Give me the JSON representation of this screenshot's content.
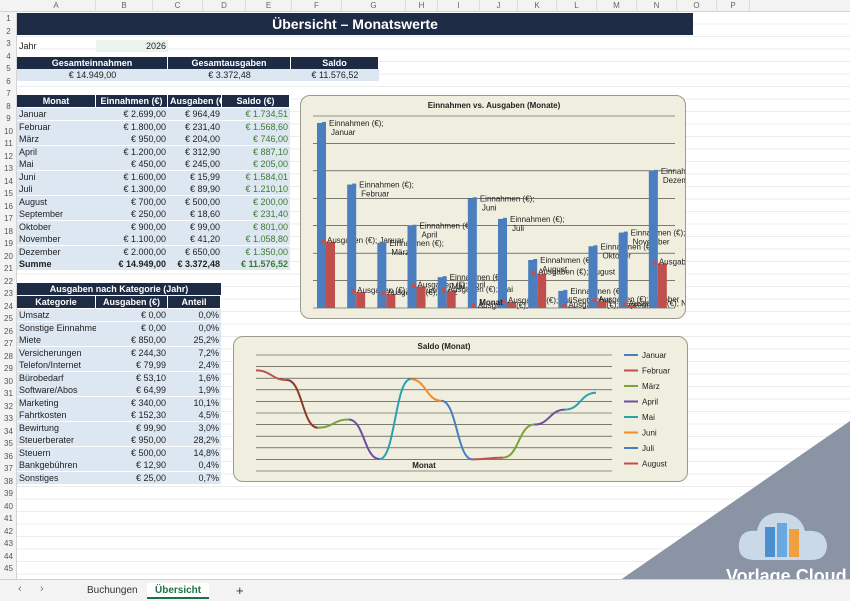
{
  "columns": [
    "A",
    "B",
    "C",
    "D",
    "E",
    "F",
    "G",
    "H",
    "I",
    "J",
    "K",
    "L",
    "M",
    "N",
    "O",
    "P"
  ],
  "rows": [
    "1",
    "2",
    "3",
    "4",
    "5",
    "6",
    "7",
    "8",
    "9",
    "10",
    "11",
    "12",
    "13",
    "14",
    "15",
    "16",
    "17",
    "18",
    "19",
    "20",
    "21",
    "22",
    "23",
    "24",
    "25",
    "26",
    "27",
    "28",
    "29",
    "30",
    "31",
    "32",
    "33",
    "34",
    "35",
    "36",
    "37",
    "38",
    "39",
    "40",
    "41",
    "42",
    "43",
    "44",
    "45"
  ],
  "title": "Übersicht – Monatswerte",
  "year": {
    "label": "Jahr",
    "value": "2026"
  },
  "totals": {
    "headers": [
      "Gesamteinnahmen",
      "Gesamtausgaben",
      "Saldo"
    ],
    "values": [
      "€ 14.949,00",
      "€ 3.372,48",
      "€ 11.576,52"
    ]
  },
  "months_table": {
    "headers": [
      "Monat",
      "Einnahmen (€)",
      "Ausgaben (€)",
      "Saldo (€)"
    ],
    "rows": [
      [
        "Januar",
        "€ 2.699,00",
        "€ 964,49",
        "€ 1.734,51"
      ],
      [
        "Februar",
        "€ 1.800,00",
        "€ 231,40",
        "€ 1.568,60"
      ],
      [
        "März",
        "€ 950,00",
        "€ 204,00",
        "€ 746,00"
      ],
      [
        "April",
        "€ 1.200,00",
        "€ 312,90",
        "€ 887,10"
      ],
      [
        "Mai",
        "€ 450,00",
        "€ 245,00",
        "€ 205,00"
      ],
      [
        "Juni",
        "€ 1.600,00",
        "€ 15,99",
        "€ 1.584,01"
      ],
      [
        "Juli",
        "€ 1.300,00",
        "€ 89,90",
        "€ 1.210,10"
      ],
      [
        "August",
        "€ 700,00",
        "€ 500,00",
        "€ 200,00"
      ],
      [
        "September",
        "€ 250,00",
        "€ 18,60",
        "€ 231,40"
      ],
      [
        "Oktober",
        "€ 900,00",
        "€ 99,00",
        "€ 801,00"
      ],
      [
        "November",
        "€ 1.100,00",
        "€ 41,20",
        "€ 1.058,80"
      ],
      [
        "Dezember",
        "€ 2.000,00",
        "€ 650,00",
        "€ 1.350,00"
      ]
    ],
    "sum": [
      "Summe",
      "€ 14.949,00",
      "€ 3.372,48",
      "€ 11.576,52"
    ]
  },
  "category_table": {
    "title": "Ausgaben nach Kategorie (Jahr)",
    "headers": [
      "Kategorie",
      "Ausgaben (€)",
      "Anteil"
    ],
    "rows": [
      [
        "Umsatz",
        "€ 0,00",
        "0,0%"
      ],
      [
        "Sonstige Einnahmen",
        "€ 0,00",
        "0,0%"
      ],
      [
        "Miete",
        "€ 850,00",
        "25,2%"
      ],
      [
        "Versicherungen",
        "€ 244,30",
        "7,2%"
      ],
      [
        "Telefon/Internet",
        "€ 79,99",
        "2,4%"
      ],
      [
        "Bürobedarf",
        "€ 53,10",
        "1,6%"
      ],
      [
        "Software/Abos",
        "€ 64,99",
        "1,9%"
      ],
      [
        "Marketing",
        "€ 340,00",
        "10,1%"
      ],
      [
        "Fahrtkosten",
        "€ 152,30",
        "4,5%"
      ],
      [
        "Bewirtung",
        "€ 99,90",
        "3,0%"
      ],
      [
        "Steuerberater",
        "€ 950,00",
        "28,2%"
      ],
      [
        "Steuern",
        "€ 500,00",
        "14,8%"
      ],
      [
        "Bankgebühren",
        "€ 12,90",
        "0,4%"
      ],
      [
        "Sonstiges",
        "€ 25,00",
        "0,7%"
      ]
    ]
  },
  "chart_data": [
    {
      "type": "bar",
      "title": "Einnahmen vs. Ausgaben (Monate)",
      "xlabel": "Monat",
      "categories": [
        "Januar",
        "Februar",
        "März",
        "April",
        "Mai",
        "Juni",
        "Juli",
        "August",
        "September",
        "Oktober",
        "November",
        "Dezember"
      ],
      "series": [
        {
          "name": "Einnahmen (€)",
          "color": "#4a7ebf",
          "values": [
            2699,
            1800,
            950,
            1200,
            450,
            1600,
            1300,
            700,
            250,
            900,
            1100,
            2000
          ]
        },
        {
          "name": "Ausgaben (€)",
          "color": "#c0504d",
          "values": [
            964.49,
            231.4,
            204.0,
            312.9,
            245.0,
            15.99,
            89.9,
            500.0,
            18.6,
            99.0,
            41.2,
            650.0
          ]
        }
      ],
      "ylim": [
        0,
        2800
      ],
      "grid": true
    },
    {
      "type": "line",
      "title": "Saldo (Monat)",
      "xlabel": "Monat",
      "categories": [
        "Januar",
        "Februar",
        "März",
        "April",
        "Mai",
        "Juni",
        "Juli",
        "August",
        "September",
        "Oktober",
        "November",
        "Dezember"
      ],
      "values": [
        1734.51,
        1568.6,
        746.0,
        887.1,
        205.0,
        1584.01,
        1210.1,
        200.0,
        231.4,
        801.0,
        1058.8,
        1350.0
      ],
      "segment_colors": [
        "#c0504d",
        "#8a3a2a",
        "#7aa33a",
        "#6f4fa0",
        "#2aa0b0",
        "#f08c2a",
        "#4a7ebf",
        "#c0504d",
        "#7aa33a",
        "#6f4fa0",
        "#2aa0b0",
        "#f08c2a"
      ],
      "legend": [
        "Januar",
        "Februar",
        "März",
        "April",
        "Mai",
        "Juni",
        "Juli",
        "August"
      ],
      "legend_colors": [
        "#4a7ebf",
        "#c0504d",
        "#7aa33a",
        "#6f4fa0",
        "#2aa0b0",
        "#f08c2a",
        "#4a7ebf",
        "#c0504d"
      ],
      "legend_position": "right",
      "ylim": [
        0,
        2000
      ],
      "grid": true
    }
  ],
  "tabs": [
    "Buchungen",
    "Übersicht"
  ],
  "tab_add": "+",
  "nav_prev": "‹",
  "nav_next": "›",
  "watermark": "Vorlage Cloud"
}
